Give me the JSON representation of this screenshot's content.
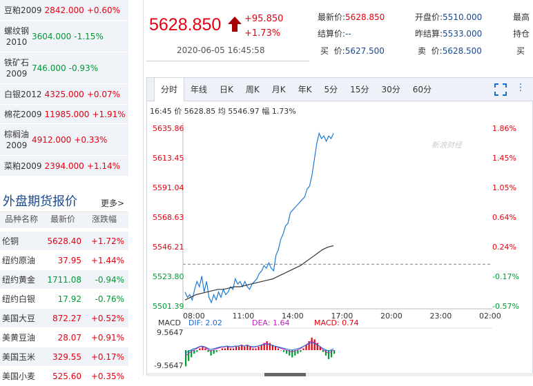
{
  "domestic_list": [
    {
      "name": "豆粕2009",
      "price": "2842.000",
      "change": "+0.60%",
      "dir": "up"
    },
    {
      "name": "螺纹钢\n2010",
      "price": "3604.000",
      "change": "-1.15%",
      "dir": "down"
    },
    {
      "name": "铁矿石\n2009",
      "price": "746.000",
      "change": "-0.93%",
      "dir": "down"
    },
    {
      "name": "白银2012",
      "price": "4325.000",
      "change": "+0.07%",
      "dir": "up"
    },
    {
      "name": "棉花2009",
      "price": "11985.000",
      "change": "+1.91%",
      "dir": "up"
    },
    {
      "name": "棕榈油\n2009",
      "price": "4912.000",
      "change": "+0.33%",
      "dir": "up"
    },
    {
      "name": "菜粕2009",
      "price": "2394.000",
      "change": "+1.14%",
      "dir": "up"
    }
  ],
  "foreign_section": {
    "title": "外盘期货报价",
    "more": "更多>"
  },
  "foreign_headers": [
    "品种名称",
    "最新价",
    "涨跌幅"
  ],
  "foreign_list": [
    {
      "name": "伦铜",
      "price": "5628.40",
      "change": "+1.72%",
      "dir": "up"
    },
    {
      "name": "纽约原油",
      "price": "37.95",
      "change": "+1.44%",
      "dir": "up"
    },
    {
      "name": "纽约黄金",
      "price": "1711.08",
      "change": "-0.94%",
      "dir": "down"
    },
    {
      "name": "纽约白银",
      "price": "17.92",
      "change": "-0.76%",
      "dir": "down"
    },
    {
      "name": "美国大豆",
      "price": "872.27",
      "change": "+0.52%",
      "dir": "up"
    },
    {
      "name": "美黄豆油",
      "price": "28.07",
      "change": "+0.91%",
      "dir": "up"
    },
    {
      "name": "美国玉米",
      "price": "329.55",
      "change": "+0.17%",
      "dir": "up"
    },
    {
      "name": "美国小麦",
      "price": "525.60",
      "change": "+0.35%",
      "dir": "up"
    }
  ],
  "quote": {
    "price": "5628.850",
    "change": "+95.850",
    "change_pct": "+1.73%",
    "time": "2020-06-05 16:45:58",
    "fields": {
      "latest_label": "最新价:",
      "latest": "5628.850",
      "settle_label": "结算价:",
      "settle": "--",
      "bid_label": "买  价:",
      "bid": "5627.500",
      "open_label": "开盘价:",
      "open": "5510.000",
      "prev_settle_label": "昨结算:",
      "prev_settle": "5533.000",
      "ask_label": "卖  价:",
      "ask": "5628.500",
      "high_label": "最高",
      "hold_label": "持仓",
      "buy_label": "买"
    }
  },
  "tabs": [
    "分时",
    "年线",
    "日K",
    "周K",
    "月K",
    "年K",
    "5分",
    "15分",
    "30分",
    "60分"
  ],
  "info": {
    "time": "16:45",
    "price_label": "价",
    "price": "5628.85",
    "avg_label": "均",
    "avg": "5546.97",
    "amp_label": "幅",
    "amp": "1.73%"
  },
  "watermark": "新浪财经",
  "colors": {
    "up": "#e4000f",
    "down": "#009933",
    "price_line": "#1a7ad2",
    "avg_line": "#333333"
  },
  "chart_data": {
    "type": "line",
    "y_left_ticks": [
      "5635.86",
      "5613.45",
      "5591.04",
      "5568.63",
      "5546.21",
      "5523.80",
      "5501.39"
    ],
    "y_right_ticks": [
      "1.86%",
      "1.45%",
      "1.05%",
      "0.64%",
      "0.24%",
      "-0.17%",
      "-0.57%"
    ],
    "x_ticks": [
      "08:00",
      "11:00",
      "14:00",
      "17:00",
      "20:00",
      "23:00",
      "02:00"
    ],
    "ylim": [
      5501.39,
      5635.86
    ],
    "prev_settle": 5533.0,
    "series": [
      {
        "values": [
          5512,
          5508,
          5510,
          5506,
          5514,
          5520,
          5516,
          5524,
          5512,
          5520,
          5508,
          5504,
          5510,
          5506,
          5512,
          5508,
          5514,
          5510,
          5512,
          5516,
          5514,
          5522,
          5518,
          5520,
          5516,
          5520,
          5516,
          5514,
          5518,
          5520,
          5522,
          5526,
          5528,
          5532,
          5530,
          5534,
          5530,
          5528,
          5540,
          5544,
          5552,
          5556,
          5562,
          5564,
          5572,
          5574,
          5576,
          5578,
          5580,
          5582,
          5584,
          5590,
          5592,
          5600,
          5612,
          5624,
          5632,
          5628,
          5630,
          5626,
          5630,
          5628,
          5632
        ]
      },
      {
        "values": [
          5506,
          5508,
          5510,
          5511,
          5512,
          5513,
          5514,
          5514,
          5515,
          5516,
          5516,
          5517,
          5518,
          5519,
          5520,
          5521,
          5522,
          5524,
          5526,
          5528,
          5530,
          5532,
          5535,
          5538,
          5541,
          5544,
          5546,
          5547
        ]
      }
    ]
  },
  "macd": {
    "label": "MACD",
    "dif_label": "DIF: 2.02",
    "dea_label": "DEA: 1.64",
    "macd_label": "MACD: 0.74",
    "top": "9.5647",
    "bottom": "-9.5647",
    "bars": [
      -9,
      -6,
      -4,
      -2,
      -1,
      1,
      2,
      1,
      -1,
      -3,
      -2,
      -1,
      0,
      1,
      1,
      2,
      1,
      1,
      2,
      2,
      3,
      2,
      3,
      2,
      1,
      1,
      2,
      3,
      4,
      5,
      4,
      3,
      2,
      1,
      0,
      -1,
      -2,
      -3,
      -4,
      -3,
      -2,
      -1,
      1,
      3,
      5,
      7,
      6,
      4,
      2,
      -1,
      -3,
      -5,
      -4,
      -2
    ]
  }
}
